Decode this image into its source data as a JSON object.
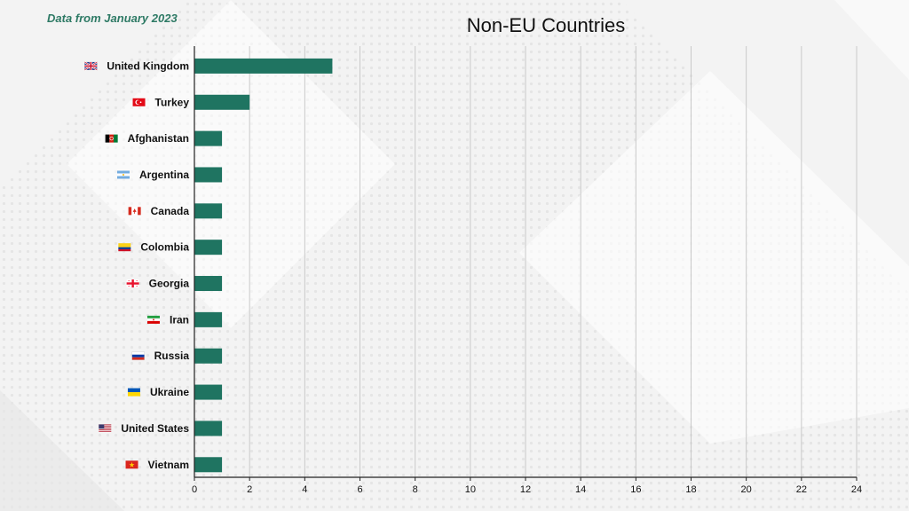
{
  "subtitle": "Data from January 2023",
  "chart_data": {
    "type": "bar",
    "orientation": "horizontal",
    "title": "Non-EU Countries",
    "categories": [
      "United Kingdom",
      "Turkey",
      "Afghanistan",
      "Argentina",
      "Canada",
      "Colombia",
      "Georgia",
      "Iran",
      "Russia",
      "Ukraine",
      "United States",
      "Vietnam"
    ],
    "flag_icons": [
      "uk-flag-icon",
      "turkey-flag-icon",
      "afghanistan-flag-icon",
      "argentina-flag-icon",
      "canada-flag-icon",
      "colombia-flag-icon",
      "georgia-flag-icon",
      "iran-flag-icon",
      "russia-flag-icon",
      "ukraine-flag-icon",
      "usa-flag-icon",
      "vietnam-flag-icon"
    ],
    "values": [
      5,
      2,
      1,
      1,
      1,
      1,
      1,
      1,
      1,
      1,
      1,
      1
    ],
    "xlim": [
      0,
      24
    ],
    "xticks": [
      0,
      2,
      4,
      6,
      8,
      10,
      12,
      14,
      16,
      18,
      20,
      22,
      24
    ],
    "grid": true,
    "bar_color": "#1f7461",
    "title_color": "#111111",
    "subtitle_color": "#2e7a65"
  }
}
